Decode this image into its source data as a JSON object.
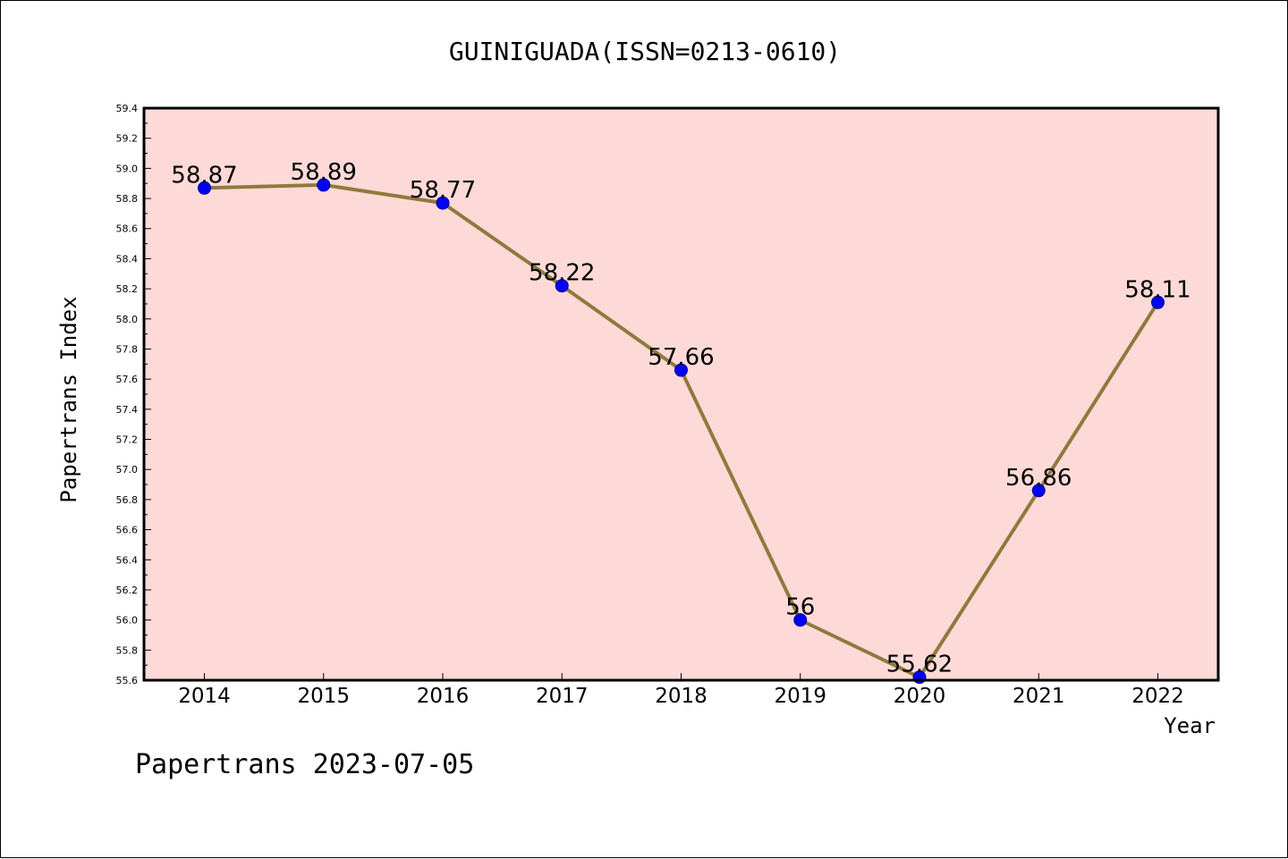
{
  "chart_data": {
    "type": "line",
    "title": "GUINIGUADA(ISSN=0213-0610)",
    "xlabel": "Year",
    "ylabel": "Papertrans Index",
    "categories": [
      "2014",
      "2015",
      "2016",
      "2017",
      "2018",
      "2019",
      "2020",
      "2021",
      "2022"
    ],
    "series": [
      {
        "values": [
          58.87,
          58.89,
          58.77,
          58.22,
          57.66,
          56,
          55.62,
          56.86,
          58.11
        ],
        "labels": [
          "58.87",
          "58.89",
          "58.77",
          "58.22",
          "57.66",
          "56",
          "55.62",
          "56.86",
          "58.11"
        ]
      }
    ],
    "ylim": [
      55.6,
      59.4
    ],
    "yticks": [
      "55.6",
      "55.8",
      "56.0",
      "56.2",
      "56.4",
      "56.6",
      "56.8",
      "57.0",
      "57.2",
      "57.4",
      "57.6",
      "57.8",
      "58.0",
      "58.2",
      "58.4",
      "58.6",
      "58.8",
      "59.0",
      "59.2",
      "59.4"
    ],
    "grid": false,
    "colors": {
      "plot_background": "#fddad8",
      "line": "#8f7a3c",
      "marker": "#0000ff"
    }
  },
  "footer": "Papertrans 2023-07-05"
}
